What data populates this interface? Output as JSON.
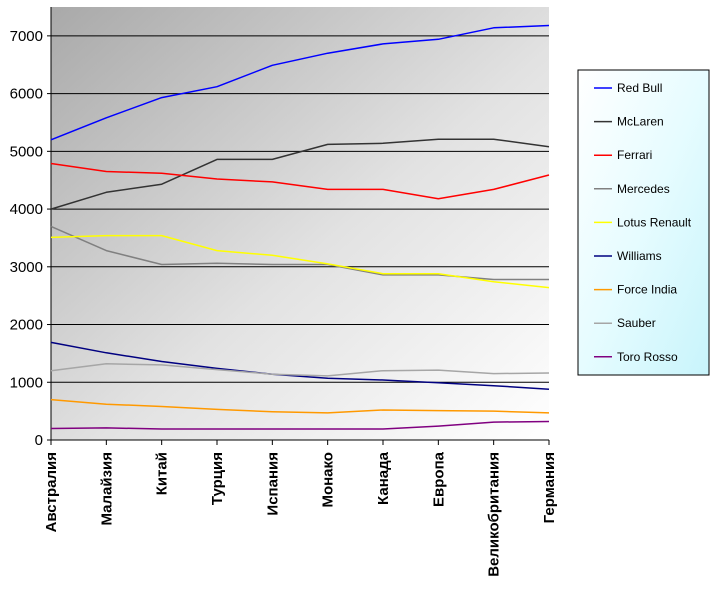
{
  "chart_data": {
    "type": "line",
    "title": "",
    "xlabel": "",
    "ylabel": "",
    "ylim": [
      0,
      7500
    ],
    "yticks": [
      0,
      1000,
      2000,
      3000,
      4000,
      5000,
      6000,
      7000
    ],
    "grid": true,
    "legend": "right",
    "background": "gradient-gray",
    "categories": [
      "Австралия",
      "Малайзия",
      "Китай",
      "Турция",
      "Испания",
      "Монако",
      "Канада",
      "Европа",
      "Великобритания",
      "Германия"
    ],
    "series": [
      {
        "name": "Red Bull",
        "color": "#0000ff",
        "values": [
          5200,
          5580,
          5930,
          6120,
          6490,
          6700,
          6860,
          6940,
          7140,
          7180
        ]
      },
      {
        "name": "McLaren",
        "color": "#333333",
        "values": [
          4000,
          4290,
          4430,
          4860,
          4860,
          5120,
          5140,
          5210,
          5210,
          5080
        ]
      },
      {
        "name": "Ferrari",
        "color": "#ff0000",
        "values": [
          4790,
          4650,
          4620,
          4520,
          4470,
          4340,
          4340,
          4180,
          4340,
          4590
        ]
      },
      {
        "name": "Mercedes",
        "color": "#808080",
        "values": [
          3700,
          3280,
          3040,
          3060,
          3040,
          3040,
          2860,
          2860,
          2780,
          2780
        ]
      },
      {
        "name": "Lotus Renault",
        "color": "#ffff00",
        "values": [
          3510,
          3540,
          3540,
          3280,
          3200,
          3050,
          2880,
          2880,
          2740,
          2640
        ]
      },
      {
        "name": "Williams",
        "color": "#000080",
        "values": [
          1690,
          1510,
          1360,
          1240,
          1140,
          1070,
          1040,
          990,
          940,
          880
        ]
      },
      {
        "name": "Force India",
        "color": "#ff9900",
        "values": [
          700,
          620,
          580,
          530,
          490,
          470,
          520,
          510,
          500,
          470
        ]
      },
      {
        "name": "Sauber",
        "color": "#a6a6a6",
        "values": [
          1200,
          1320,
          1300,
          1220,
          1140,
          1110,
          1200,
          1210,
          1150,
          1160
        ]
      },
      {
        "name": "Toro Rosso",
        "color": "#800080",
        "values": [
          200,
          210,
          190,
          190,
          190,
          190,
          190,
          240,
          310,
          320
        ]
      }
    ]
  }
}
